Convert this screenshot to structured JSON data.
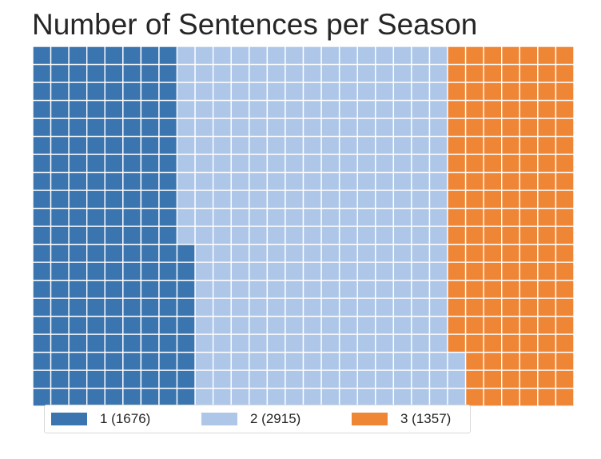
{
  "chart_data": {
    "type": "waffle",
    "title": "Number of Sentences per Season",
    "rows": 20,
    "columns": 30,
    "fill_order": "column-major, bottom-to-top, left-to-right",
    "series": [
      {
        "name": "1",
        "value": 1676,
        "label": "1 (1676)",
        "color": "#3b75af"
      },
      {
        "name": "2",
        "value": 2915,
        "label": "2 (2915)",
        "color": "#aec7e8"
      },
      {
        "name": "3",
        "value": 1357,
        "label": "3 (1357)",
        "color": "#ef8636"
      }
    ],
    "legend_position": "bottom-left"
  }
}
